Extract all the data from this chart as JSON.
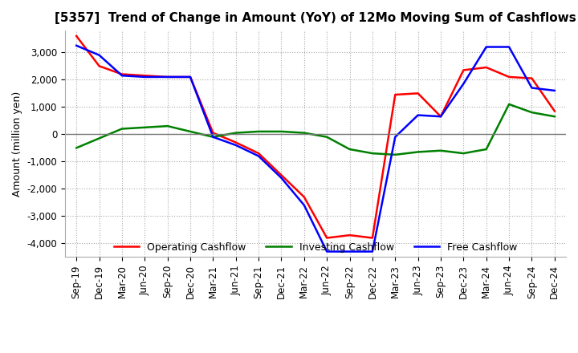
{
  "title": "[5357]  Trend of Change in Amount (YoY) of 12Mo Moving Sum of Cashflows",
  "ylabel": "Amount (million yen)",
  "x_labels": [
    "Sep-19",
    "Dec-19",
    "Mar-20",
    "Jun-20",
    "Sep-20",
    "Dec-20",
    "Mar-21",
    "Jun-21",
    "Sep-21",
    "Dec-21",
    "Mar-22",
    "Jun-22",
    "Sep-22",
    "Dec-22",
    "Mar-23",
    "Jun-23",
    "Sep-23",
    "Dec-23",
    "Mar-24",
    "Jun-24",
    "Sep-24",
    "Dec-24"
  ],
  "operating_cashflow": [
    3600,
    2500,
    2200,
    2150,
    2100,
    2100,
    50,
    -300,
    -700,
    -1500,
    -2300,
    -3800,
    -3700,
    -3800,
    1450,
    1500,
    650,
    2350,
    2450,
    2100,
    2050,
    850
  ],
  "investing_cashflow": [
    -500,
    -150,
    200,
    250,
    300,
    100,
    -100,
    50,
    100,
    100,
    50,
    -100,
    -550,
    -700,
    -750,
    -650,
    -600,
    -700,
    -550,
    1100,
    800,
    650
  ],
  "free_cashflow": [
    3250,
    2900,
    2150,
    2100,
    2100,
    2100,
    -100,
    -400,
    -800,
    -1600,
    -2600,
    -4300,
    -4300,
    -4300,
    -100,
    700,
    650,
    1850,
    3200,
    3200,
    1700,
    1600
  ],
  "ylim": [
    -4500,
    3800
  ],
  "yticks": [
    -4000,
    -3000,
    -2000,
    -1000,
    0,
    1000,
    2000,
    3000
  ],
  "operating_color": "#ff0000",
  "investing_color": "#008000",
  "free_color": "#0000ff",
  "background_color": "#ffffff",
  "grid_color": "#aaaaaa",
  "title_fontsize": 11,
  "axis_fontsize": 9,
  "tick_fontsize": 8.5,
  "linewidth": 1.8
}
